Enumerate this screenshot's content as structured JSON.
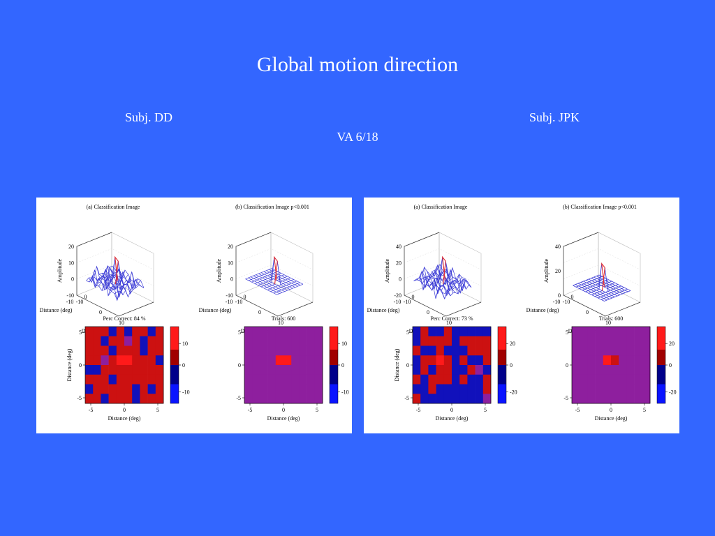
{
  "slide": {
    "title": "Global motion direction",
    "subject_left": "Subj. DD",
    "subject_right": "Subj. JPK",
    "acuity": "VA 6/18"
  },
  "colors": {
    "background": "#3366ff",
    "heat_red": "#cc1111",
    "heat_bright_red": "#ff1a1a",
    "heat_blue": "#1111bb",
    "heat_purple": "#8e1f9e",
    "mesh_line": "#3b3bd6",
    "peak_line": "#e63030"
  },
  "chart_data": [
    {
      "panel": "left",
      "type": "figure",
      "plots": [
        {
          "id": "surface-a",
          "type": "surface3d",
          "title": "(a)  Classification Image",
          "zlabel": "Amplitude",
          "xlabel": "Distance (deg)",
          "ylabel": "Distance (deg)",
          "z_ticks": [
            "20",
            "10",
            "0",
            "-10"
          ],
          "x_ticks": [
            "-10",
            "0",
            "10"
          ],
          "y_ticks": [
            "-10",
            "0"
          ],
          "zlim": [
            -10,
            20
          ]
        },
        {
          "id": "surface-b",
          "type": "surface3d",
          "title": "(b)  Classification Image p<0.001",
          "zlabel": "Amplitude",
          "xlabel": "Distance (deg)",
          "ylabel": "Distance (deg)",
          "z_ticks": [
            "20",
            "10",
            "0",
            "-10"
          ],
          "x_ticks": [
            "-10",
            "0",
            "10"
          ],
          "y_ticks": [
            "-10",
            "0"
          ],
          "zlim": [
            -10,
            20
          ]
        },
        {
          "id": "heatmap-c",
          "type": "heatmap",
          "title": "Perc Correct: 84 %",
          "xlabel": "Distance (deg)",
          "ylabel": "Distance (deg)",
          "x_ticks": [
            "-5",
            "0",
            "5"
          ],
          "y_ticks": [
            "5",
            "0",
            "-5"
          ],
          "colorbar_ticks": [
            "10",
            "0",
            "-10"
          ],
          "clim": [
            -15,
            15
          ],
          "grid_codes": [
            "RRRBRBRRBR",
            "RRBRRPRBRR",
            "RRRBRRRBRR",
            "RRPRSSRRRB",
            "BBRRRRRRRR",
            "RRRBRRRRRR",
            "BRRRRRBRBR",
            "RRBRRRBRRR"
          ]
        },
        {
          "id": "heatmap-d",
          "type": "heatmap",
          "title": "Trials: 600",
          "xlabel": "Distance (deg)",
          "ylabel": "",
          "x_ticks": [
            "-5",
            "0",
            "5"
          ],
          "y_ticks": [
            "5",
            "0",
            "-5"
          ],
          "colorbar_ticks": [
            "10",
            "0",
            "-10"
          ],
          "clim": [
            -15,
            15
          ],
          "grid_codes": [
            "PPPPPPPPPP",
            "PPPPPPPPPP",
            "PPPPPPPPPP",
            "PPPPSSPPPP",
            "PPPPPPPPPP",
            "PPPPPPPPPP",
            "PPPPPPPPPP",
            "PPPPPPPPPP"
          ]
        }
      ]
    },
    {
      "panel": "right",
      "type": "figure",
      "plots": [
        {
          "id": "surface-a",
          "type": "surface3d",
          "title": "(a)  Classification Image",
          "zlabel": "Amplitude",
          "xlabel": "Distance (deg)",
          "ylabel": "Distance (deg)",
          "z_ticks": [
            "40",
            "20",
            "0",
            "-20"
          ],
          "x_ticks": [
            "-10",
            "0",
            "10"
          ],
          "y_ticks": [
            "-10",
            "0"
          ],
          "zlim": [
            -20,
            40
          ]
        },
        {
          "id": "surface-b",
          "type": "surface3d",
          "title": "(b)  Classification Image p<0.001",
          "zlabel": "Amplitude",
          "xlabel": "Distance (deg)",
          "ylabel": "Distance (deg)",
          "z_ticks": [
            "40",
            "20",
            "0"
          ],
          "x_ticks": [
            "-10",
            "0",
            "10"
          ],
          "y_ticks": [
            "-10",
            "0"
          ],
          "zlim": [
            -10,
            40
          ]
        },
        {
          "id": "heatmap-c",
          "type": "heatmap",
          "title": "Perc Correct: 73 %",
          "xlabel": "Distance (deg)",
          "ylabel": "Distance (deg)",
          "x_ticks": [
            "-5",
            "0",
            "5"
          ],
          "y_ticks": [
            "5",
            "0",
            "-5"
          ],
          "colorbar_ticks": [
            "20",
            "0",
            "-20"
          ],
          "clim": [
            -30,
            30
          ],
          "grid_codes": [
            "BRBBRBBBBB",
            "BRRRRBRRRR",
            "RBBRBBBRRR",
            "BRRSRBRBBR",
            "BRBRRBBRPB",
            "RBRRRBRBBR",
            "BBRBBBBBBR",
            "RBBBBBBBBP"
          ]
        },
        {
          "id": "heatmap-d",
          "type": "heatmap",
          "title": "Trials: 600",
          "xlabel": "Distance (deg)",
          "ylabel": "",
          "x_ticks": [
            "-5",
            "0",
            "5"
          ],
          "y_ticks": [
            "5",
            "0",
            "-5"
          ],
          "colorbar_ticks": [
            "20",
            "0",
            "-20"
          ],
          "clim": [
            -30,
            30
          ],
          "grid_codes": [
            "PPPPPPPPPP",
            "PPPPPPPPPP",
            "PPPPPPPPPP",
            "PPPPSRPPPP",
            "PPPPPPPPPP",
            "PPPPPPPPPP",
            "PPPPPPPPPP",
            "PPPPPPPPPP"
          ]
        }
      ]
    }
  ]
}
